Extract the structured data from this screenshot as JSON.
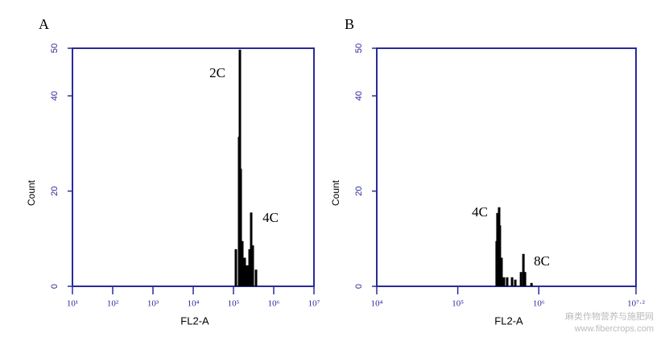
{
  "chart_data": [
    {
      "type": "bar",
      "panel_label": "A",
      "xlabel": "FL2-A",
      "ylabel": "Count",
      "xscale": "log",
      "annotations": [
        "2C",
        "4C"
      ],
      "x": [
        114800,
        138000,
        144500,
        151400,
        166000,
        190500,
        218800,
        251200,
        275400,
        302000,
        363100
      ],
      "values": [
        7.8,
        31.4,
        49.7,
        24.7,
        9.5,
        6,
        4.4,
        7.8,
        15.5,
        8.6,
        3.5
      ],
      "color": "#000000",
      "axis_color": "#2a2a9a",
      "xlim": [
        10,
        10000000
      ],
      "ylim": [
        0,
        50
      ],
      "xticks": [
        {
          "value": 10,
          "label": "10¹"
        },
        {
          "value": 100,
          "label": "10²"
        },
        {
          "value": 1000,
          "label": "10³"
        },
        {
          "value": 10000,
          "label": "10⁴"
        },
        {
          "value": 100000,
          "label": "10⁵"
        },
        {
          "value": 1000000,
          "label": "10⁶"
        },
        {
          "value": 10000000,
          "label": "10⁷"
        }
      ],
      "yticks": [
        0,
        20,
        40,
        50
      ]
    },
    {
      "type": "bar",
      "panel_label": "B",
      "xlabel": "FL2-A",
      "ylabel": "Count",
      "xscale": "log",
      "annotations": [
        "4C",
        "8C"
      ],
      "x": [
        302000,
        309000,
        324000,
        331000,
        347000,
        372000,
        407000,
        468000,
        513000,
        603000,
        646000,
        676000,
        813000
      ],
      "values": [
        9.5,
        15.4,
        16.6,
        12.8,
        6,
        1.9,
        1.9,
        1.9,
        1.4,
        3,
        6.8,
        3,
        0.7
      ],
      "color": "#000000",
      "axis_color": "#2a2a9a",
      "xlim": [
        10000,
        15848932
      ],
      "ylim": [
        0,
        50
      ],
      "xticks": [
        {
          "value": 10000,
          "label": "10⁴"
        },
        {
          "value": 100000,
          "label": "10⁵"
        },
        {
          "value": 1000000,
          "label": "10⁶"
        },
        {
          "value": 15848932,
          "label": "10⁷·²"
        }
      ],
      "yticks": [
        0,
        20,
        40,
        50
      ]
    }
  ],
  "watermark": {
    "line1": "麻类作物营养与施肥网",
    "line2": "www.fibercrops.com"
  }
}
